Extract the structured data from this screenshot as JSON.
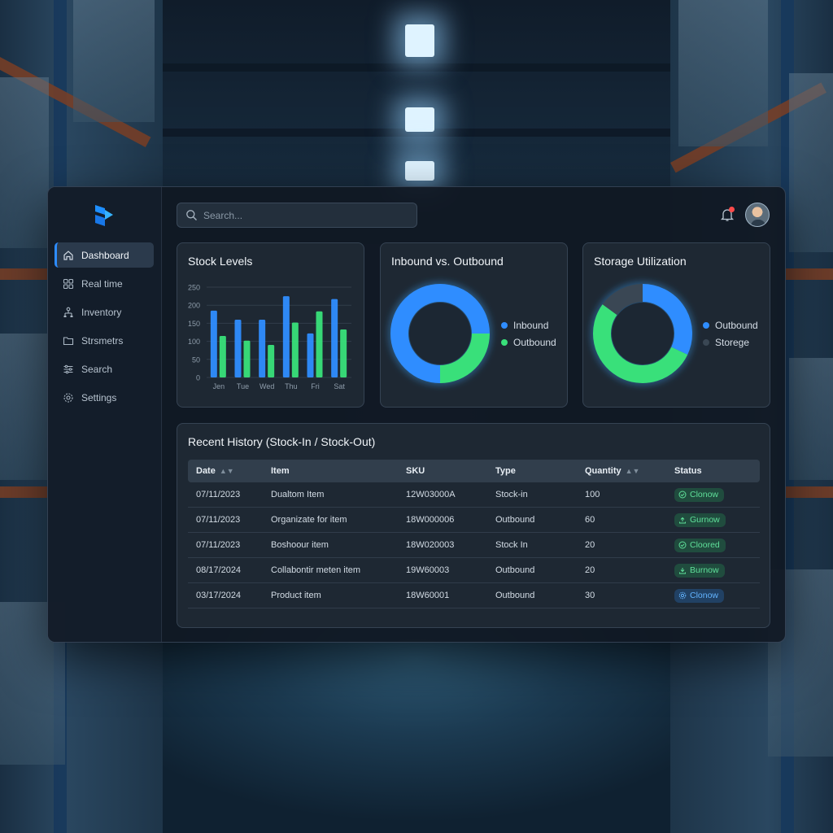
{
  "search": {
    "placeholder": "Search..."
  },
  "sidebar": {
    "items": [
      {
        "label": "Dashboard",
        "icon": "home-icon",
        "active": true
      },
      {
        "label": "Real time",
        "icon": "grid-icon"
      },
      {
        "label": "Inventory",
        "icon": "hierarchy-icon"
      },
      {
        "label": "Strsmetrs",
        "icon": "folder-icon"
      },
      {
        "label": "Search",
        "icon": "sliders-icon"
      },
      {
        "label": "Settings",
        "icon": "gear-icon"
      }
    ]
  },
  "header": {
    "notification_icon": "bell-icon",
    "has_notification": true,
    "avatar": "user-avatar"
  },
  "cards": {
    "stock": {
      "title": "Stock Levels"
    },
    "inout": {
      "title": "Inbound vs. Outbound"
    },
    "storage": {
      "title": "Storage Utilization"
    }
  },
  "chart_data": [
    {
      "type": "bar",
      "title": "Stock Levels",
      "categories": [
        "Jen",
        "Tue",
        "Wed",
        "Thu",
        "Fri",
        "Sat"
      ],
      "ylim": [
        0,
        250
      ],
      "yticks": [
        0,
        50,
        100,
        150,
        200,
        250
      ],
      "grid": true,
      "series": [
        {
          "values": [
            185,
            160,
            160,
            225,
            122,
            217
          ],
          "color": "#2f8dff"
        },
        {
          "values": [
            115,
            102,
            90,
            152,
            183,
            133
          ],
          "color": "#39e07a"
        }
      ]
    },
    {
      "type": "pie",
      "title": "Inbound vs. Outbound",
      "donut": true,
      "legend_position": "right",
      "slices": [
        {
          "name": "Inbound",
          "value": 75,
          "color": "#2f8dff"
        },
        {
          "name": "Outbound",
          "value": 25,
          "color": "#39e07a"
        }
      ]
    },
    {
      "type": "pie",
      "title": "Storage Utilization",
      "donut": true,
      "legend_position": "right",
      "slices": [
        {
          "name": "Outbound",
          "value": 32,
          "color": "#2f8dff"
        },
        {
          "name": "",
          "value": 53,
          "color": "#39e07a"
        },
        {
          "name": "Storege",
          "value": 15,
          "color": "#3a4754"
        }
      ]
    }
  ],
  "history": {
    "title": "Recent History (Stock-In / Stock-Out)",
    "columns": [
      "Date",
      "Item",
      "SKU",
      "Type",
      "Quantity",
      "Status"
    ],
    "sortable": [
      "Date",
      "Quantity"
    ],
    "rows": [
      {
        "date": "07/11/2023",
        "item": "Dualtom Item",
        "sku": "12W03000A",
        "type": "Stock-in",
        "quantity": "100",
        "status": "Clonow",
        "status_color": "green",
        "status_icon": "check-icon"
      },
      {
        "date": "07/11/2023",
        "item": "Organizate for item",
        "sku": "18W000006",
        "type": "Outbound",
        "quantity": "60",
        "status": "Gurnow",
        "status_color": "green",
        "status_icon": "upload-icon"
      },
      {
        "date": "07/11/2023",
        "item": "Boshoour item",
        "sku": "18W020003",
        "type": "Stock In",
        "quantity": "20",
        "status": "Cloored",
        "status_color": "green",
        "status_icon": "check-icon"
      },
      {
        "date": "08/17/2024",
        "item": "Collabontir meten item",
        "sku": "19W60003",
        "type": "Outbound",
        "quantity": "20",
        "status": "Burnow",
        "status_color": "green",
        "status_icon": "download-icon"
      },
      {
        "date": "03/17/2024",
        "item": "Product item",
        "sku": "18W60001",
        "type": "Outbound",
        "quantity": "30",
        "status": "Clonow",
        "status_color": "blue",
        "status_icon": "gear-icon"
      }
    ]
  }
}
